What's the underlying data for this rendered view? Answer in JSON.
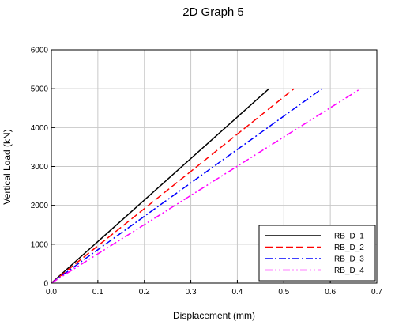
{
  "chart_data": {
    "type": "line",
    "title": "2D Graph 5",
    "xlabel": "Displacement (mm)",
    "ylabel": "Vertical Load (kN)",
    "xlim": [
      0,
      0.7
    ],
    "ylim": [
      0,
      6000
    ],
    "xticks": [
      "0.0",
      "0.1",
      "0.2",
      "0.3",
      "0.4",
      "0.5",
      "0.6",
      "0.7"
    ],
    "yticks": [
      "0",
      "1000",
      "2000",
      "3000",
      "4000",
      "5000",
      "6000"
    ],
    "grid": true,
    "legend_position": "bottom-right",
    "series": [
      {
        "name": "RB_D_1",
        "color": "#000000",
        "dash": "solid",
        "x": [
          0,
          0.468
        ],
        "y": [
          0,
          5000
        ]
      },
      {
        "name": "RB_D_2",
        "color": "#ff0000",
        "dash": "dashed",
        "x": [
          0,
          0.522
        ],
        "y": [
          0,
          5000
        ]
      },
      {
        "name": "RB_D_3",
        "color": "#0000ff",
        "dash": "dash-dot",
        "x": [
          0,
          0.582
        ],
        "y": [
          0,
          5000
        ]
      },
      {
        "name": "RB_D_4",
        "color": "#ff00ff",
        "dash": "dash-dot-dot",
        "x": [
          0,
          0.665
        ],
        "y": [
          0,
          5000
        ]
      }
    ]
  }
}
